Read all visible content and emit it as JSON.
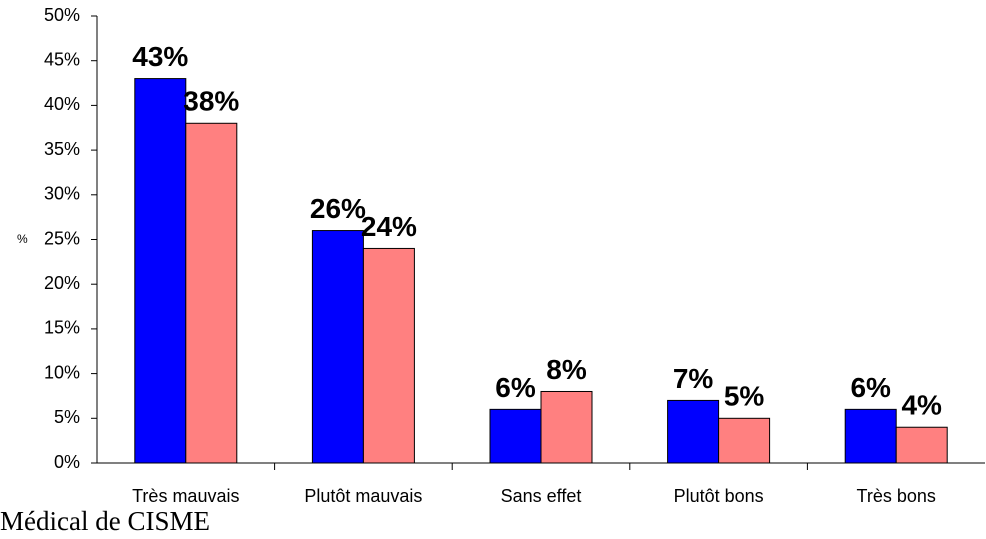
{
  "chart_data": {
    "type": "bar",
    "ylabel": "%",
    "categories": [
      "Très mauvais",
      "Plutôt mauvais",
      "Sans effet",
      "Plutôt bons",
      "Très bons"
    ],
    "series": [
      {
        "color": "#0000ff",
        "values": [
          43,
          26,
          6,
          7,
          6
        ],
        "value_labels": [
          "43%",
          "26%",
          "6%",
          "7%",
          "6%"
        ]
      },
      {
        "color": "#ff8080",
        "values": [
          38,
          24,
          8,
          5,
          4
        ],
        "value_labels": [
          "38%",
          "24%",
          "8%",
          "5%",
          "4%"
        ]
      }
    ],
    "ylim": [
      0,
      50
    ],
    "yticks": [
      {
        "value": 0,
        "label": "0%"
      },
      {
        "value": 5,
        "label": "5%"
      },
      {
        "value": 10,
        "label": "10%"
      },
      {
        "value": 15,
        "label": "15%"
      },
      {
        "value": 20,
        "label": "20%"
      },
      {
        "value": 25,
        "label": "25%"
      },
      {
        "value": 30,
        "label": "30%"
      },
      {
        "value": 35,
        "label": "35%"
      },
      {
        "value": 40,
        "label": "40%"
      },
      {
        "value": 45,
        "label": "45%"
      },
      {
        "value": 50,
        "label": "50%"
      }
    ],
    "grid": false,
    "footer": "Médical de CISME"
  }
}
